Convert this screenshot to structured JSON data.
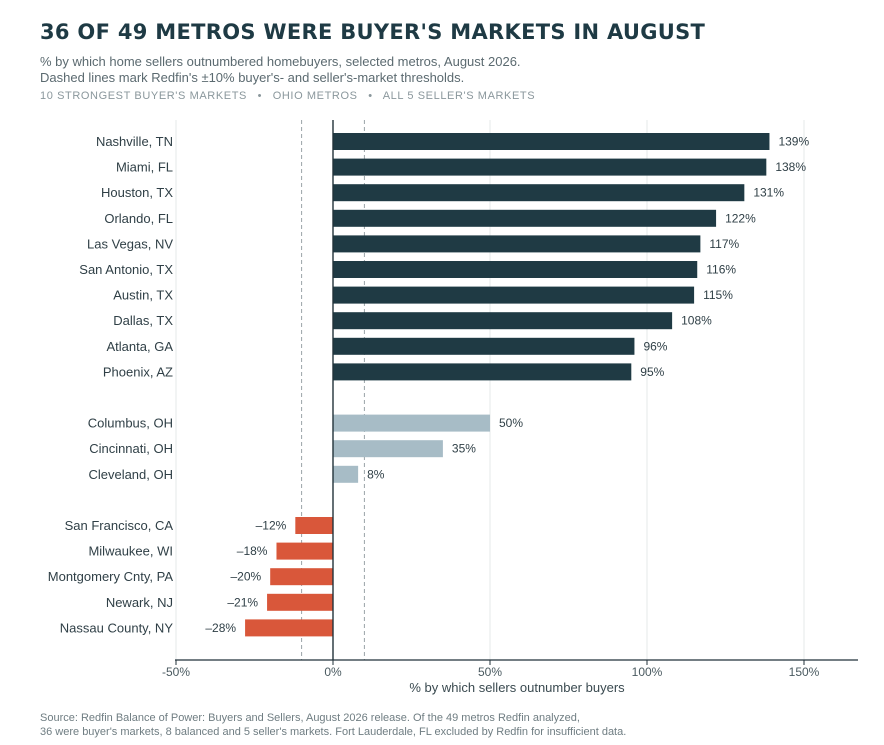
{
  "title": "36 OF 49 METROS WERE BUYER'S MARKETS IN AUGUST",
  "subtitle_lines": [
    "% by which home sellers outnumbered homebuyers, selected metros, August 2026.",
    "Dashed lines mark Redfin's ±10% buyer's- and seller's-market thresholds."
  ],
  "group_labels": [
    "10 STRONGEST BUYER'S MARKETS",
    "OHIO METROS",
    "ALL 5 SELLER'S MARKETS"
  ],
  "group_separator": "•",
  "source_lines": [
    "Source: Redfin Balance of Power: Buyers and Sellers, August 2026 release. Of the 49 metros Redfin analyzed,",
    "36 were buyer's markets, 8 balanced and 5 seller's markets. Fort Lauderdale, FL excluded by Redfin for insufficient data."
  ],
  "colors": {
    "buyer_strong": "#1f3a44",
    "ohio": "#a7bcc6",
    "seller": "#d9573a",
    "axis": "#22323a",
    "grid": "#e4e8ea",
    "threshold": "#9aa3a7",
    "label": "#2f3f46"
  },
  "chart_data": {
    "type": "bar",
    "orientation": "horizontal",
    "xlabel": "% by which sellers outnumber buyers",
    "xlim": [
      -50,
      170
    ],
    "xticks": [
      -50,
      0,
      50,
      100,
      150
    ],
    "xtick_labels": [
      "-50%",
      "0%",
      "50%",
      "100%",
      "150%"
    ],
    "thresholds": [
      -10,
      10
    ],
    "grid": true,
    "groups": [
      {
        "color_key": "buyer_strong",
        "items": [
          {
            "label": "Nashville, TN",
            "value": 139,
            "value_label": "139%"
          },
          {
            "label": "Miami, FL",
            "value": 138,
            "value_label": "138%"
          },
          {
            "label": "Houston, TX",
            "value": 131,
            "value_label": "131%"
          },
          {
            "label": "Orlando, FL",
            "value": 122,
            "value_label": "122%"
          },
          {
            "label": "Las Vegas, NV",
            "value": 117,
            "value_label": "117%"
          },
          {
            "label": "San Antonio, TX",
            "value": 116,
            "value_label": "116%"
          },
          {
            "label": "Austin, TX",
            "value": 115,
            "value_label": "115%"
          },
          {
            "label": "Dallas, TX",
            "value": 108,
            "value_label": "108%"
          },
          {
            "label": "Atlanta, GA",
            "value": 96,
            "value_label": "96%"
          },
          {
            "label": "Phoenix, AZ",
            "value": 95,
            "value_label": "95%"
          }
        ]
      },
      {
        "color_key": "ohio",
        "items": [
          {
            "label": "Columbus, OH",
            "value": 50,
            "value_label": "50%"
          },
          {
            "label": "Cincinnati, OH",
            "value": 35,
            "value_label": "35%"
          },
          {
            "label": "Cleveland, OH",
            "value": 8,
            "value_label": "8%"
          }
        ]
      },
      {
        "color_key": "seller",
        "items": [
          {
            "label": "San Francisco, CA",
            "value": -12,
            "value_label": "–12%"
          },
          {
            "label": "Milwaukee, WI",
            "value": -18,
            "value_label": "–18%"
          },
          {
            "label": "Montgomery Cnty, PA",
            "value": -20,
            "value_label": "–20%"
          },
          {
            "label": "Newark, NJ",
            "value": -21,
            "value_label": "–21%"
          },
          {
            "label": "Nassau County, NY",
            "value": -28,
            "value_label": "–28%"
          }
        ]
      }
    ]
  }
}
